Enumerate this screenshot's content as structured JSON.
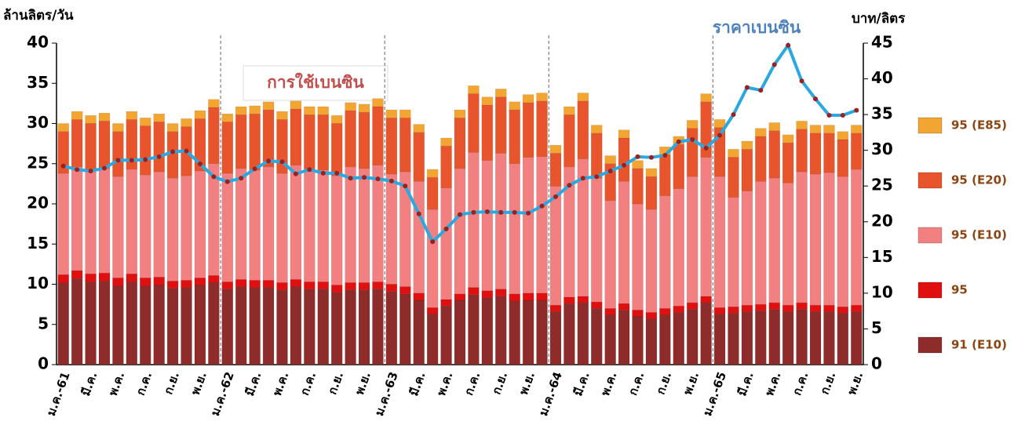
{
  "chart_data": {
    "type": "bar",
    "stacked": true,
    "y_label": "ล้านลิตร/วัน",
    "y2_label": "บาท/ลิตร",
    "annotations": [
      "การใช้เบนซิน",
      "ราคาเบนซิน"
    ],
    "categories": [
      "ม.ค.-61",
      null,
      "มี.ค.",
      null,
      "พ.ค.",
      null,
      "ก.ค.",
      null,
      "ก.ย.",
      null,
      "พ.ย.",
      null,
      "ม.ค.-62",
      null,
      "มี.ค.",
      null,
      "พ.ค.",
      null,
      "ก.ค.",
      null,
      "ก.ย.",
      null,
      "พ.ย.",
      null,
      "ม.ค.-63",
      null,
      "มี.ค.",
      null,
      "พ.ค.",
      null,
      "ก.ค.",
      null,
      "ก.ย.",
      null,
      "พ.ย.",
      null,
      "ม.ค.-64",
      null,
      "มี.ค.",
      null,
      "พ.ค.",
      null,
      "ก.ค.",
      null,
      "ก.ย.",
      null,
      "พ.ย.",
      null,
      "ม.ค.-65",
      null,
      "มี.ค.",
      null,
      "พ.ค.",
      null,
      "ก.ค.",
      null,
      "ก.ย.",
      null,
      "พ.ย."
    ],
    "ylim": [
      0,
      40
    ],
    "yticks": [
      0,
      5,
      10,
      15,
      20,
      25,
      30,
      35,
      40
    ],
    "y2lim": [
      0,
      45
    ],
    "y2ticks": [
      0,
      5,
      10,
      15,
      20,
      25,
      30,
      35,
      40,
      45
    ],
    "series": [
      {
        "name": "91 (E10)",
        "color": "#8e2b2b",
        "values": [
          10.2,
          10.7,
          10.3,
          10.4,
          9.8,
          10.3,
          9.8,
          9.9,
          9.5,
          9.6,
          9.9,
          10.2,
          9.4,
          9.7,
          9.6,
          9.6,
          9.3,
          9.7,
          9.4,
          9.4,
          9,
          9.3,
          9.3,
          9.4,
          9.1,
          8.8,
          8,
          6.3,
          7.3,
          8,
          8.7,
          8.3,
          8.5,
          7.9,
          8,
          8,
          6.6,
          7.6,
          7.7,
          7,
          6.2,
          6.8,
          6,
          5.7,
          6.2,
          6.5,
          6.9,
          7.7,
          6.3,
          6.4,
          6.6,
          6.7,
          6.9,
          6.6,
          6.9,
          6.6,
          6.6,
          6.4,
          6.6
        ]
      },
      {
        "name": "95",
        "color": "#e01010",
        "values": [
          1,
          1,
          1,
          1,
          1,
          1,
          1,
          1,
          0.9,
          0.9,
          0.9,
          0.9,
          0.9,
          0.9,
          0.9,
          0.9,
          0.9,
          0.9,
          0.9,
          0.9,
          0.9,
          0.9,
          0.9,
          0.9,
          0.9,
          0.9,
          0.9,
          0.8,
          0.8,
          0.8,
          0.9,
          0.9,
          0.9,
          0.9,
          0.9,
          0.9,
          0.8,
          0.8,
          0.8,
          0.8,
          0.8,
          0.8,
          0.8,
          0.8,
          0.8,
          0.8,
          0.8,
          0.8,
          0.8,
          0.8,
          0.8,
          0.8,
          0.8,
          0.8,
          0.8,
          0.8,
          0.8,
          0.8,
          0.8
        ]
      },
      {
        "name": "95 (E10)",
        "color": "#f28080",
        "values": [
          12.6,
          12.9,
          13,
          13,
          12.6,
          13,
          12.8,
          13.1,
          12.8,
          13,
          13.3,
          13.9,
          13.5,
          13.8,
          13.7,
          14.1,
          13.6,
          14.2,
          14,
          13.9,
          13.6,
          14.4,
          14.2,
          14.5,
          13.7,
          14.3,
          13.9,
          12.2,
          13.9,
          15.6,
          16.8,
          16.2,
          16.9,
          16.2,
          16.9,
          17,
          14.8,
          16.2,
          17.1,
          15.4,
          13.4,
          15.2,
          13.2,
          12.8,
          14,
          14.6,
          15.7,
          17.3,
          16.3,
          13.6,
          14.2,
          15.3,
          15.5,
          15.2,
          16.3,
          16.3,
          16.5,
          16.2,
          16.9
        ]
      },
      {
        "name": "95 (E20)",
        "color": "#e8542c",
        "values": [
          5.2,
          5.9,
          5.7,
          5.9,
          5.6,
          6.2,
          6.1,
          6.2,
          5.8,
          6.1,
          6.5,
          7,
          6.4,
          6.7,
          7,
          7.1,
          6.7,
          7,
          6.8,
          6.9,
          6.5,
          7,
          7,
          7.3,
          7,
          6.7,
          6.1,
          4,
          5.2,
          6.3,
          7.3,
          6.9,
          7,
          6.7,
          6.8,
          6.9,
          4.1,
          6.5,
          7.2,
          5.6,
          4.6,
          5.4,
          4.4,
          4.1,
          5.1,
          5.5,
          6,
          6.9,
          6.1,
          5,
          5.2,
          5.6,
          5.9,
          5,
          5.3,
          5.1,
          4.9,
          4.6,
          4.5
        ]
      },
      {
        "name": "95 (E85)",
        "color": "#f3a532",
        "values": [
          1,
          1,
          1,
          1,
          1,
          1,
          1,
          1,
          1,
          1,
          1,
          1,
          1,
          1,
          1,
          1,
          1,
          1,
          1,
          1,
          1,
          1,
          1,
          1,
          1,
          1,
          1,
          1,
          1,
          1,
          1,
          1,
          1,
          1,
          1,
          1,
          1,
          1,
          1,
          1,
          1,
          1,
          1,
          1,
          1,
          1,
          1,
          1,
          1,
          1,
          1,
          1,
          1,
          1,
          1,
          1,
          1,
          1,
          1
        ]
      },
      {
        "type": "line",
        "axis": "y2",
        "color": "#2aa8e0",
        "marker_color": "#9b2020",
        "values": [
          27.8,
          27.3,
          27.1,
          27.5,
          28.6,
          28.6,
          28.7,
          29.1,
          29.8,
          29.9,
          28.1,
          26.3,
          25.6,
          26.1,
          27.4,
          28.5,
          28.4,
          26.7,
          27.3,
          26.8,
          26.8,
          26.1,
          26.2,
          26,
          25.7,
          25,
          21.1,
          17.2,
          19,
          21,
          21.3,
          21.4,
          21.3,
          21.3,
          21.2,
          22.2,
          23.5,
          25.1,
          26.1,
          26.3,
          27.1,
          27.9,
          29.1,
          29,
          29.3,
          31.2,
          31.5,
          30.3,
          32.1,
          35,
          38.8,
          38.4,
          42,
          44.7,
          39.7,
          37.2,
          34.9,
          34.9,
          35.6
        ]
      }
    ]
  }
}
